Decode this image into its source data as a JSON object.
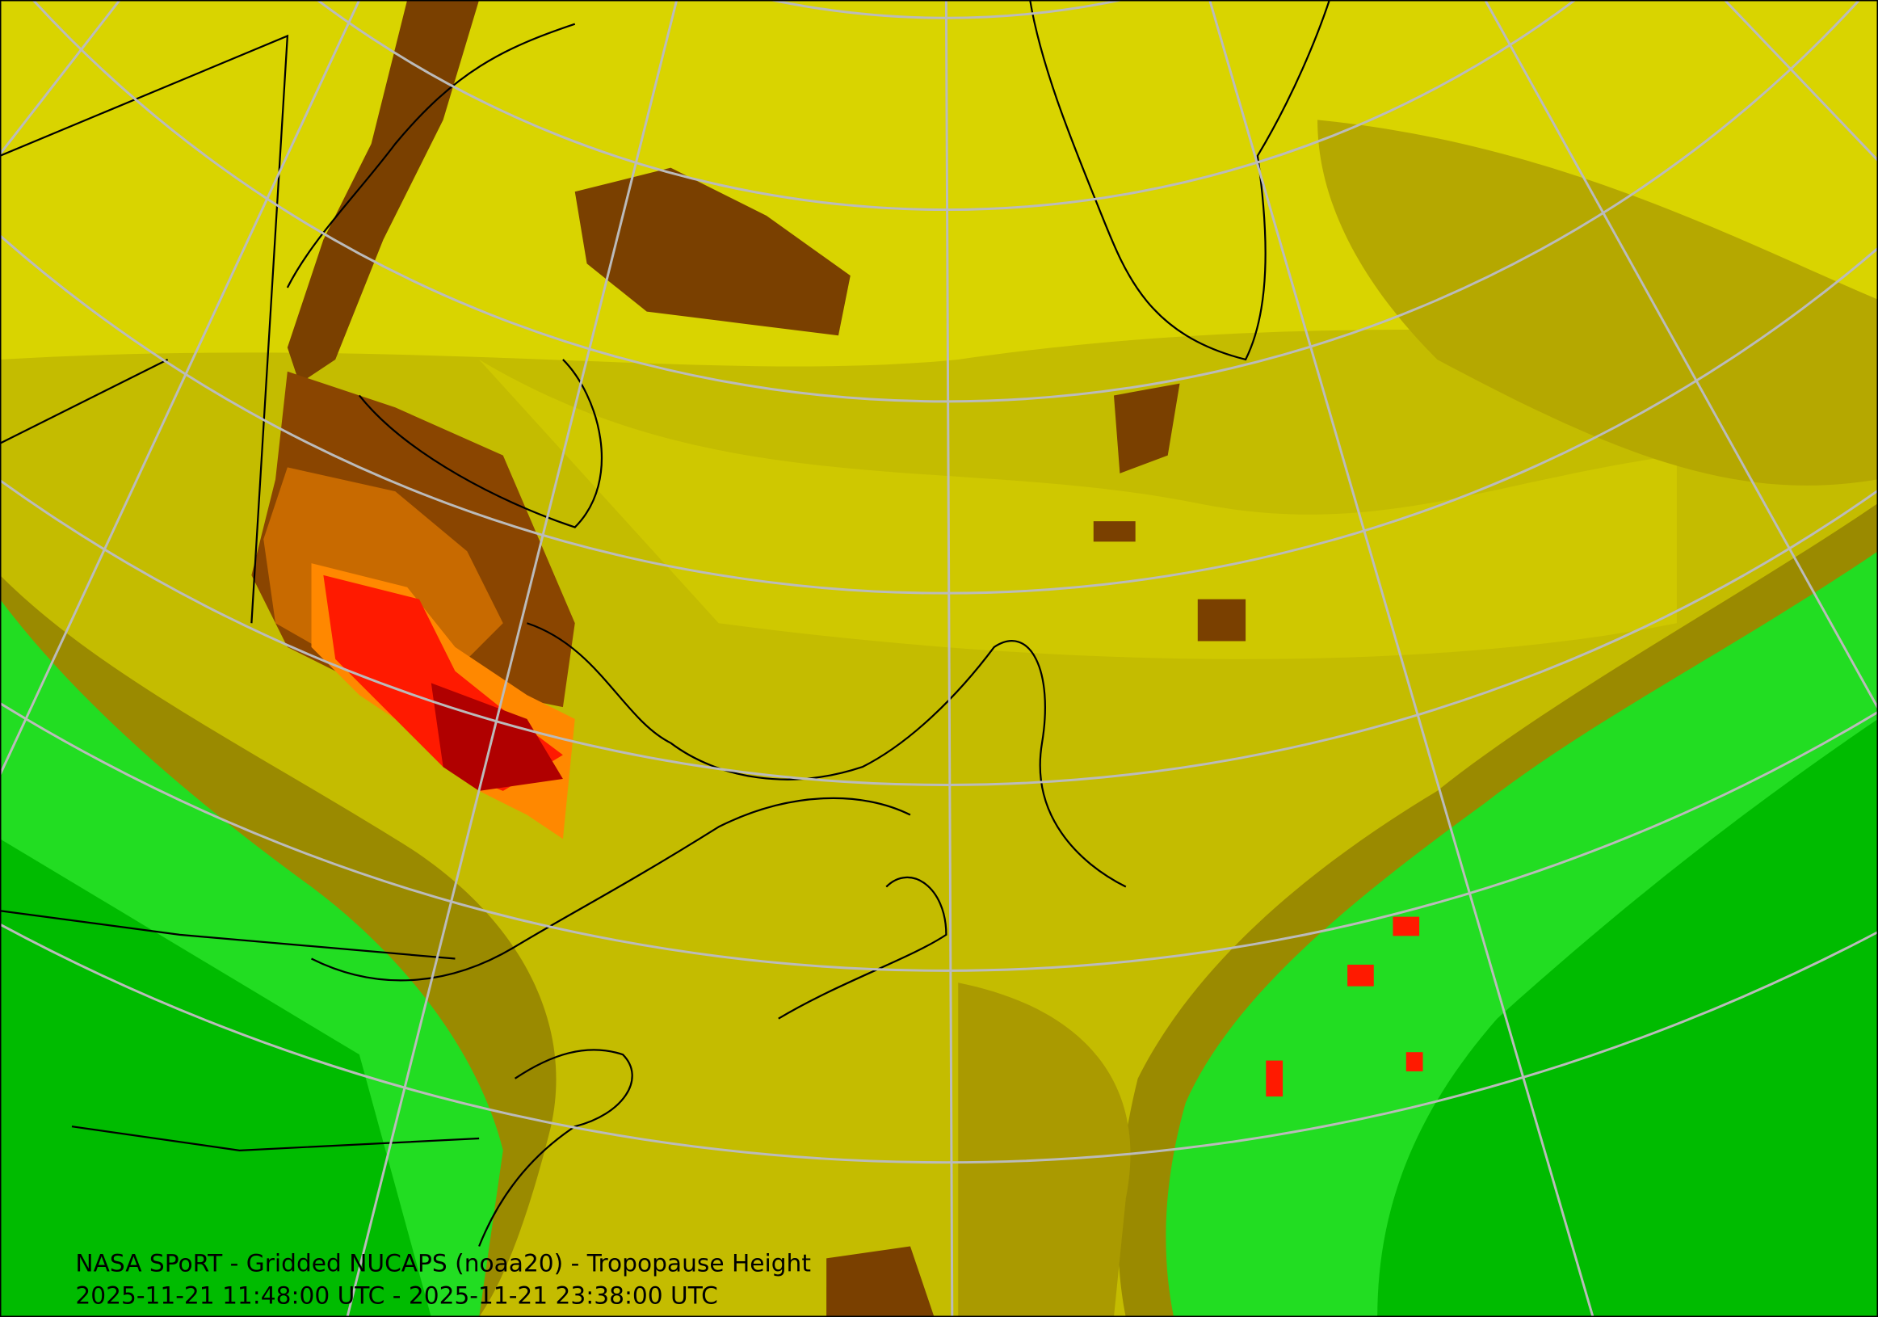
{
  "map": {
    "title": "NASA SPoRT - Gridded NUCAPS (noaa20) - Tropopause Height",
    "time_range": "2025-11-21 11:48:00 UTC - 2025-11-21 23:38:00 UTC"
  }
}
